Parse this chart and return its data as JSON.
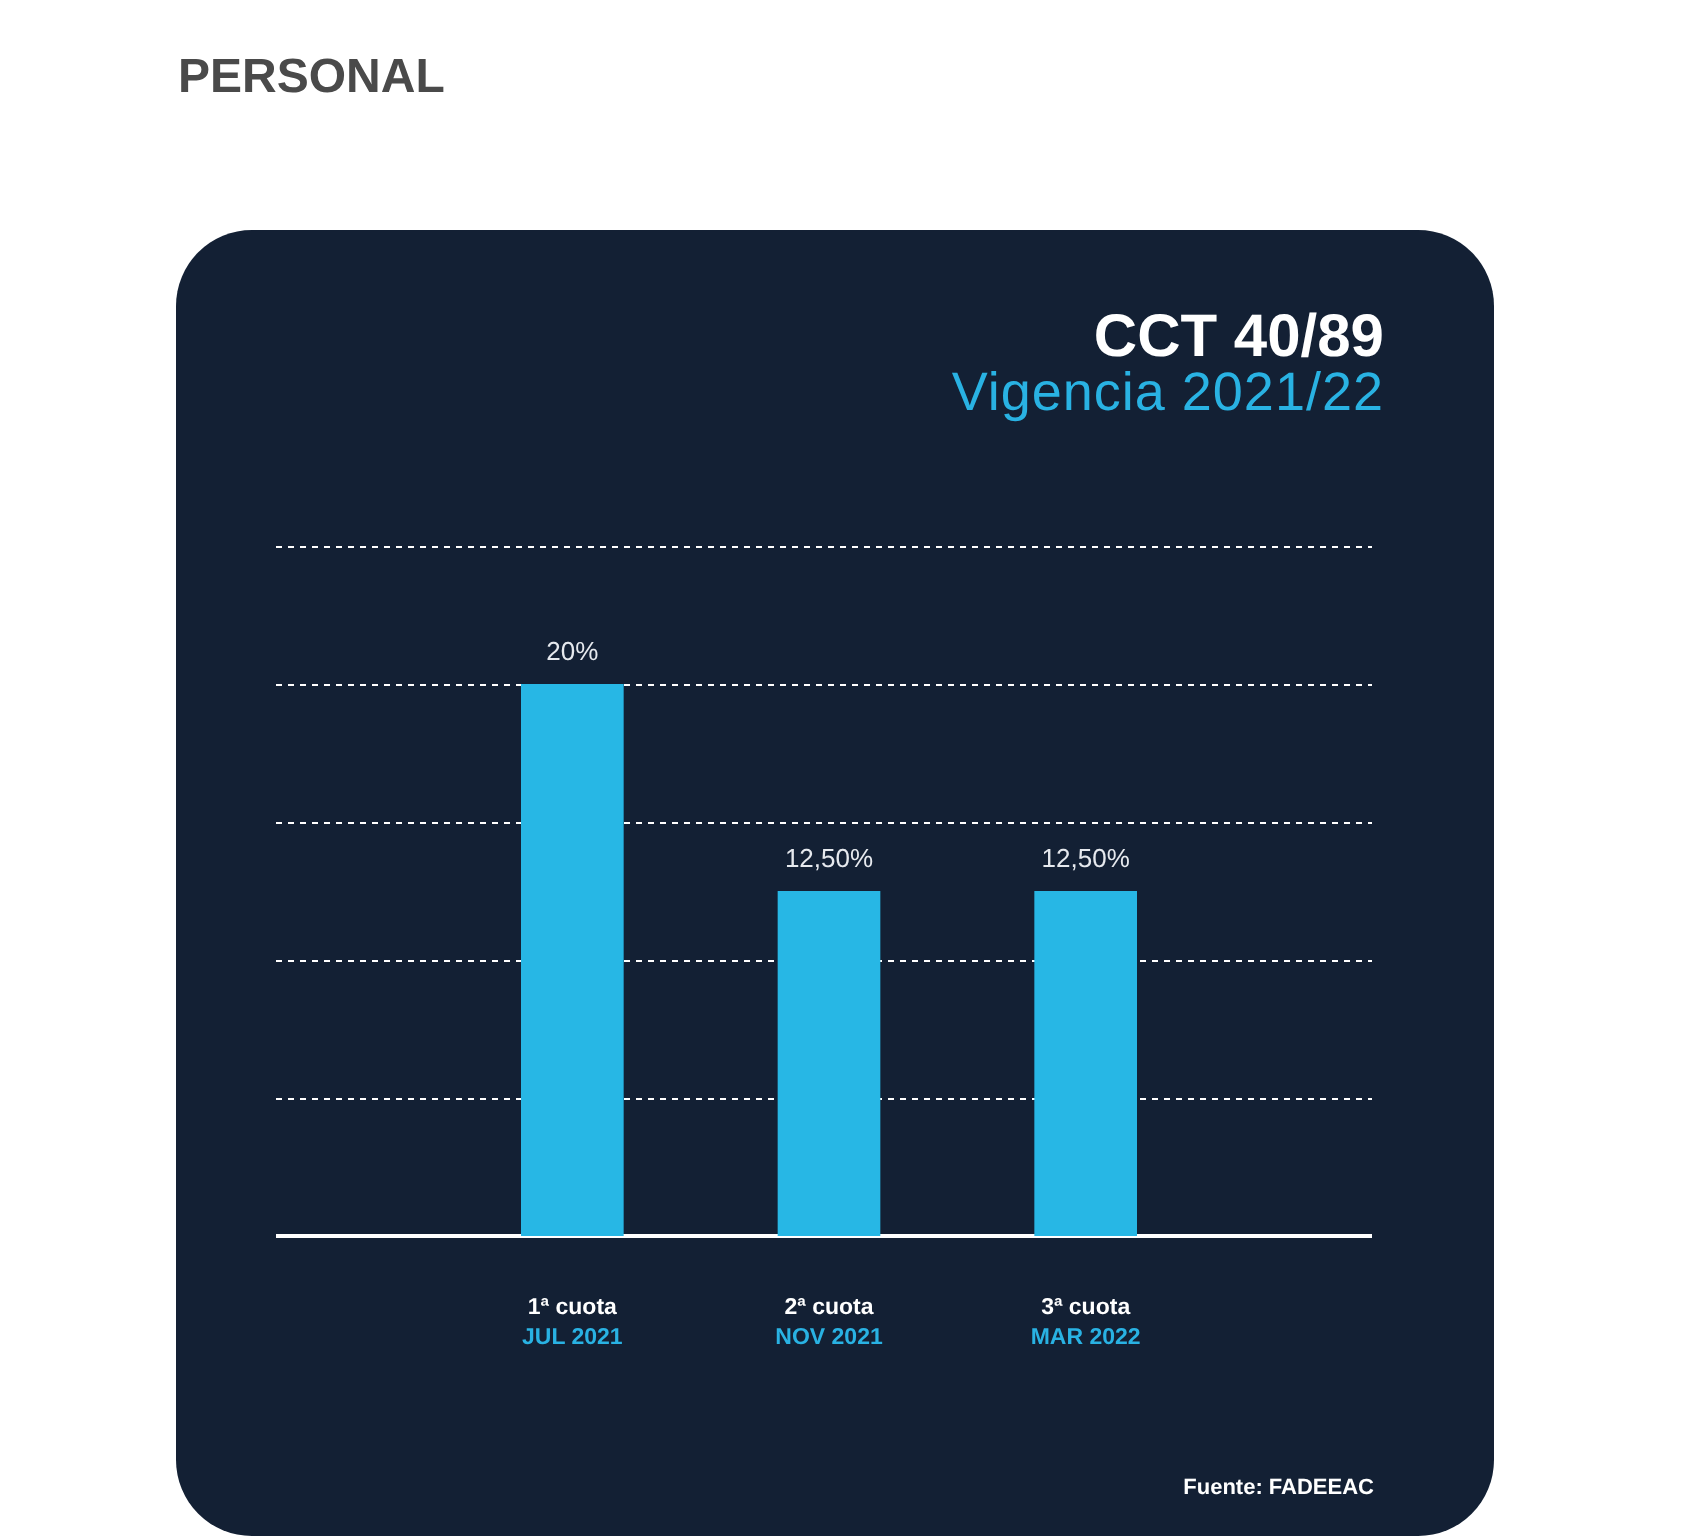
{
  "chart_data": {
    "type": "bar",
    "title": "CCT 40/89",
    "subtitle": "Vigencia 2021/22",
    "annotations": [
      "PERSONAL",
      "Fuente: FADEEAC"
    ],
    "categories": [
      "1ª cuota\nJUL 2021",
      "2ª cuota\nNOV 2021",
      "3ª cuota\nMAR 2022"
    ],
    "values": [
      20,
      12.5,
      12.5
    ],
    "value_labels": [
      "20%",
      "12,50%",
      "12,50%"
    ],
    "color": "#27b7e5",
    "ylim": [
      0,
      25
    ],
    "yticks": [
      {
        "value": 5,
        "label": null
      },
      {
        "value": 10,
        "label": null
      },
      {
        "value": 15,
        "label": null
      },
      {
        "value": 20,
        "label": null
      },
      {
        "value": 25,
        "label": null
      }
    ],
    "grid": "y",
    "tick_labels": "x"
  }
}
